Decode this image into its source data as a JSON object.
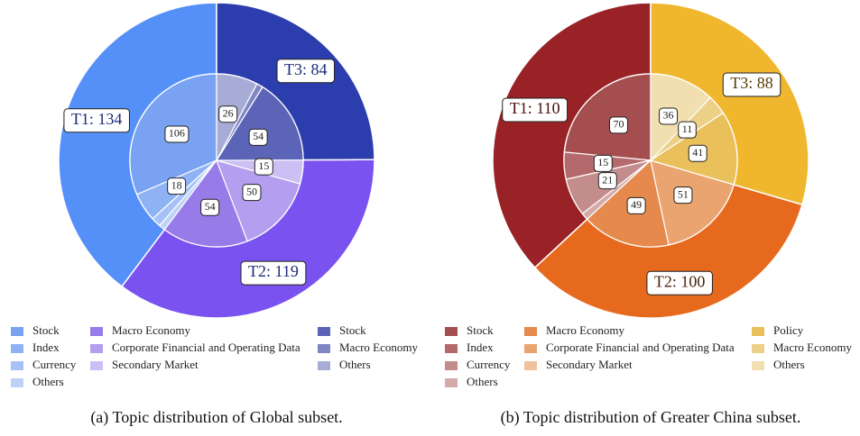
{
  "chart_data": [
    {
      "type": "sunburst",
      "caption": "(a) Topic distribution of Global subset.",
      "groups": [
        {
          "value": 134,
          "value_label": "T1: 134",
          "color": "#5590f8",
          "text_color": "#1c2a7a",
          "children": [
            {
              "name": "Stock",
              "value": 106,
              "color": "#79a2f3",
              "show_value": true
            },
            {
              "name": "Index",
              "value": 18,
              "color": "#8fb2f5",
              "show_value": true
            },
            {
              "name": "Currency",
              "value": 6,
              "color": "#a5c1f7",
              "show_value": false
            },
            {
              "name": "Others",
              "value": 4,
              "color": "#bed2f8",
              "show_value": false
            }
          ]
        },
        {
          "value": 119,
          "value_label": "T2: 119",
          "color": "#7a52ef",
          "text_color": "#1c2a7a",
          "children": [
            {
              "name": "Macro Economy",
              "value": 54,
              "color": "#977be8",
              "show_value": true
            },
            {
              "name": "Corporate Financial and Operating Data",
              "value": 50,
              "color": "#b39ef0",
              "show_value": true
            },
            {
              "name": "Secondary Market",
              "value": 15,
              "color": "#ccbff4",
              "show_value": true
            }
          ]
        },
        {
          "value": 84,
          "value_label": "T3: 84",
          "color": "#2c3ead",
          "text_color": "#1c2a7a",
          "children": [
            {
              "name": "Stock",
              "value": 54,
              "color": "#5b64b6",
              "show_value": true
            },
            {
              "name": "Macro Economy",
              "value": 4,
              "color": "#7f86c4",
              "show_value": false
            },
            {
              "name": "Others",
              "value": 26,
              "color": "#a7acd7",
              "show_value": true
            }
          ]
        }
      ]
    },
    {
      "type": "sunburst",
      "caption": "(b) Topic distribution of Greater China subset.",
      "groups": [
        {
          "value": 110,
          "value_label": "T1: 110",
          "color": "#982226",
          "text_color": "#4a0e0e",
          "children": [
            {
              "name": "Stock",
              "value": 70,
              "color": "#a54e50",
              "show_value": true
            },
            {
              "name": "Index",
              "value": 15,
              "color": "#b46a6c",
              "show_value": true
            },
            {
              "name": "Currency",
              "value": 21,
              "color": "#c38d8c",
              "show_value": true
            },
            {
              "name": "Others",
              "value": 4,
              "color": "#d4aba9",
              "show_value": false
            }
          ]
        },
        {
          "value": 100,
          "value_label": "T2: 100",
          "color": "#e7691d",
          "text_color": "#4a2208",
          "children": [
            {
              "name": "Macro Economy",
              "value": 49,
              "color": "#e5894d",
              "show_value": true
            },
            {
              "name": "Corporate Financial and Operating Data",
              "value": 51,
              "color": "#eaa46f",
              "show_value": true
            },
            {
              "name": "Secondary Market",
              "value": 0,
              "color": "#efc19d",
              "show_value": false
            }
          ]
        },
        {
          "value": 88,
          "value_label": "T3: 88",
          "color": "#f0b72e",
          "text_color": "#5a3a06",
          "children": [
            {
              "name": "Policy",
              "value": 41,
              "color": "#e9c05a",
              "show_value": true
            },
            {
              "name": "Macro Economy",
              "value": 11,
              "color": "#ecd087",
              "show_value": true
            },
            {
              "name": "Others",
              "value": 36,
              "color": "#f1dfb0",
              "show_value": true
            }
          ]
        }
      ]
    }
  ]
}
